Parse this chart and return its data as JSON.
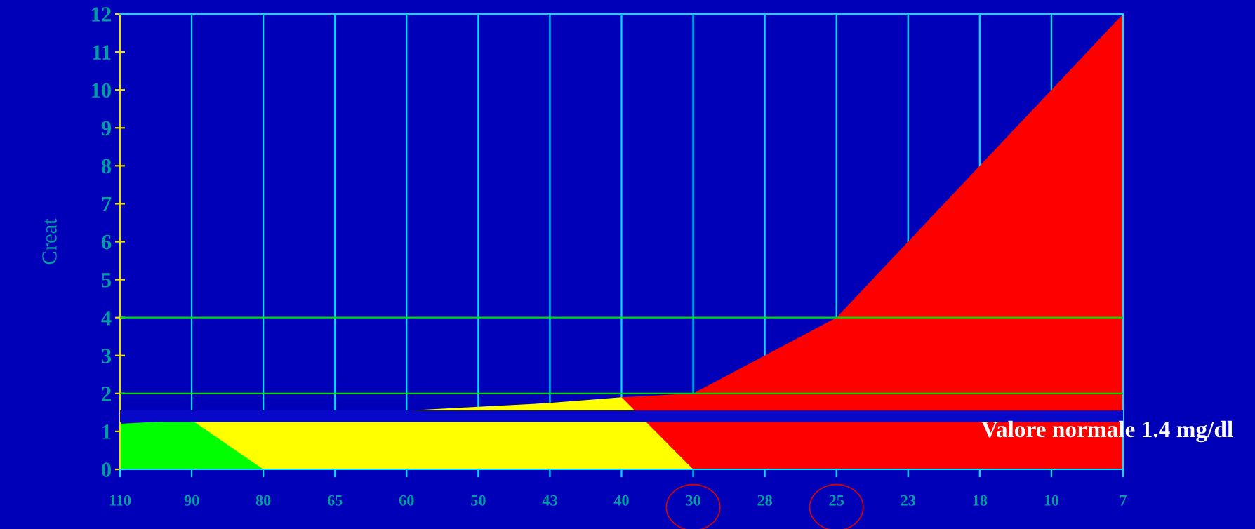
{
  "chart_data": {
    "type": "area",
    "ylabel": "Creat",
    "categories": [
      "110",
      "90",
      "80",
      "65",
      "60",
      "50",
      "43",
      "40",
      "30",
      "28",
      "25",
      "23",
      "18",
      "10",
      "7"
    ],
    "series": [
      {
        "color": "#ff0000",
        "values": [
          null,
          null,
          null,
          null,
          null,
          null,
          null,
          1.9,
          2,
          3,
          4,
          6,
          8,
          10,
          12
        ]
      },
      {
        "color": "#ffff00",
        "values": [
          null,
          1.3,
          1.3,
          1.5,
          1.55,
          1.65,
          1.75,
          1.9,
          0,
          null,
          null,
          null,
          null,
          null,
          null
        ]
      },
      {
        "color": "#00ff00",
        "values": [
          1.2,
          1.3,
          0,
          null,
          null,
          null,
          null,
          null,
          null,
          null,
          null,
          null,
          null,
          null,
          null
        ]
      }
    ],
    "ylim": [
      0,
      12
    ],
    "yticks": [
      0,
      1,
      2,
      3,
      4,
      5,
      6,
      7,
      8,
      9,
      10,
      11,
      12
    ],
    "ref_lines": [
      {
        "axis": "y",
        "value": 1.4,
        "label": "Valore normale 1.4 mg/dl",
        "color": "#0808c8"
      },
      {
        "axis": "y",
        "value": 2,
        "color": "#00e000"
      },
      {
        "axis": "y",
        "value": 4,
        "color": "#00e000"
      }
    ],
    "grid": "x",
    "legend": false
  }
}
